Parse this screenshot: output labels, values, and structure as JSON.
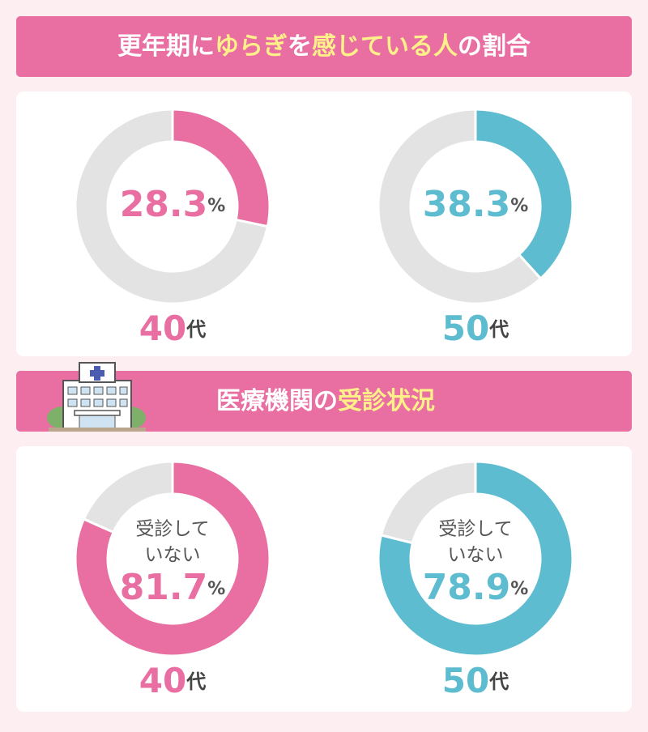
{
  "sections": [
    {
      "title_parts": [
        "更年期に",
        "ゆらぎ",
        "を",
        "感じている人",
        "の割合"
      ]
    },
    {
      "title_parts": [
        "医療機関の",
        "受診状況"
      ]
    }
  ],
  "chart_data": [
    {
      "type": "donut",
      "section": 0,
      "values": [
        28.3,
        71.7
      ],
      "colors": [
        "#e96fa3",
        "#e3e3e3"
      ],
      "unit": "%",
      "label_parts": [
        "40",
        "代"
      ]
    },
    {
      "type": "donut",
      "section": 0,
      "values": [
        38.3,
        61.7
      ],
      "colors": [
        "#5dbccf",
        "#e3e3e3"
      ],
      "unit": "%",
      "label_parts": [
        "50",
        "代"
      ]
    },
    {
      "type": "donut",
      "section": 1,
      "values": [
        81.7,
        18.3
      ],
      "colors": [
        "#e96fa3",
        "#e3e3e3"
      ],
      "unit": "%",
      "label_parts": [
        "40",
        "代"
      ],
      "center_text": [
        "受診して",
        "いない"
      ]
    },
    {
      "type": "donut",
      "section": 1,
      "values": [
        78.9,
        21.1
      ],
      "colors": [
        "#5dbccf",
        "#e3e3e3"
      ],
      "unit": "%",
      "label_parts": [
        "50",
        "代"
      ],
      "center_text": [
        "受診して",
        "いない"
      ]
    }
  ]
}
